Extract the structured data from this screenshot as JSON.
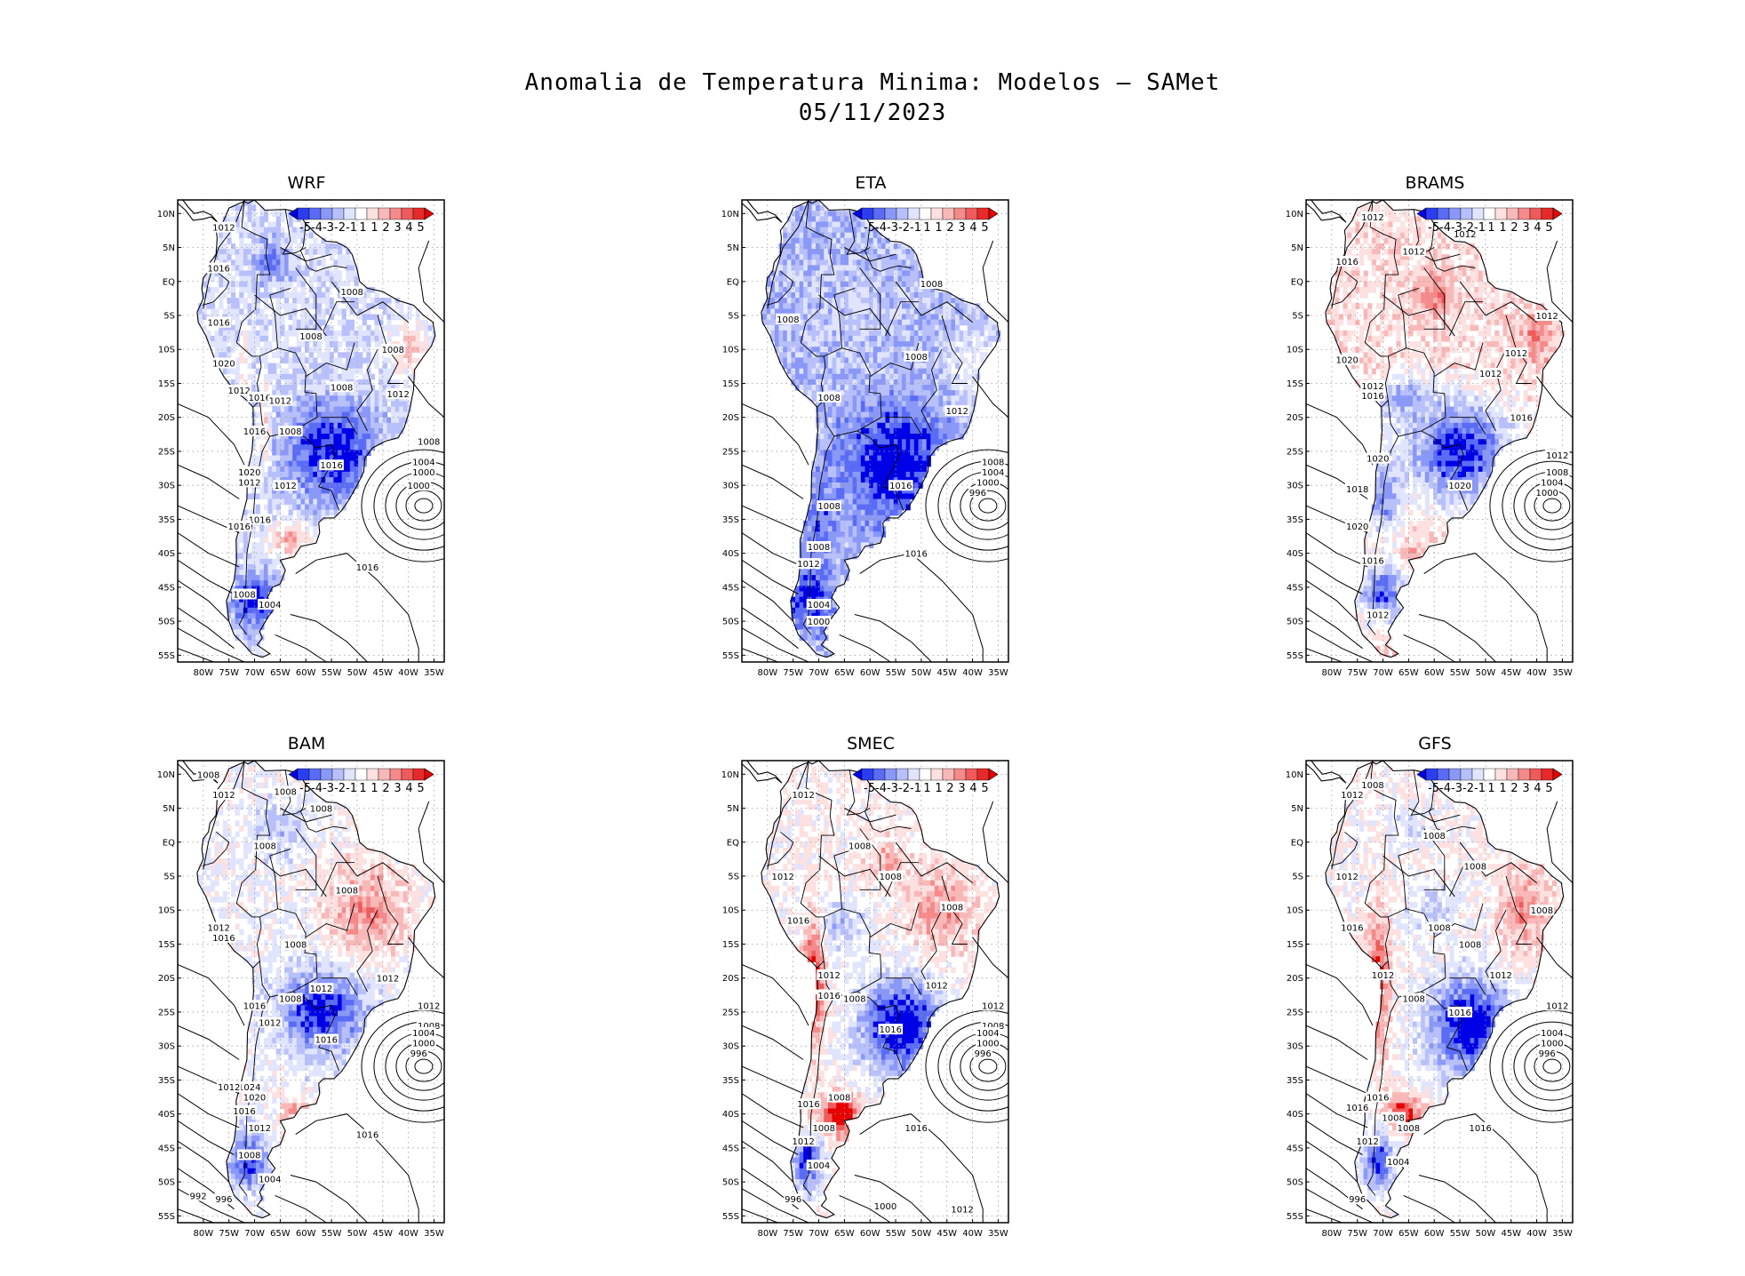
{
  "title_line1": "Anomalia de Temperatura Minima: Modelos — SAMet",
  "title_line2": "05/11/2023",
  "lat_labels": [
    "10N",
    "5N",
    "EQ",
    "5S",
    "10S",
    "15S",
    "20S",
    "25S",
    "30S",
    "35S",
    "40S",
    "45S",
    "50S",
    "55S"
  ],
  "lon_labels": [
    "80W",
    "75W",
    "70W",
    "65W",
    "60W",
    "55W",
    "50W",
    "45W",
    "40W",
    "35W"
  ],
  "colorbar": {
    "labels": [
      "-5",
      "-4",
      "-3",
      "-2",
      "-1",
      "1",
      "1",
      "2",
      "3",
      "4",
      "5"
    ],
    "colors": [
      "#0000e6",
      "#2a3ef0",
      "#5a6cf5",
      "#8a98f8",
      "#b8c0fb",
      "#e0e4fd",
      "#ffffff",
      "#fde0e0",
      "#f9b8b8",
      "#f58a8a",
      "#ef5a5a",
      "#e62a2a",
      "#e60000"
    ]
  },
  "panels": [
    {
      "name": "WRF",
      "pattern": "wrf",
      "contour_labels": [
        {
          "text": "1012",
          "lon": -76,
          "lat": 8
        },
        {
          "text": "1016",
          "lon": -77,
          "lat": 2
        },
        {
          "text": "1008",
          "lon": -51,
          "lat": -1.5
        },
        {
          "text": "1016",
          "lon": -77,
          "lat": -6
        },
        {
          "text": "1008",
          "lon": -59,
          "lat": -8
        },
        {
          "text": "1008",
          "lon": -43,
          "lat": -10
        },
        {
          "text": "1020",
          "lon": -76,
          "lat": -12
        },
        {
          "text": "1008",
          "lon": -53,
          "lat": -15.5
        },
        {
          "text": "1012",
          "lon": -42,
          "lat": -16.5
        },
        {
          "text": "1012",
          "lon": -73,
          "lat": -16
        },
        {
          "text": "1016",
          "lon": -69,
          "lat": -17
        },
        {
          "text": "1012",
          "lon": -65,
          "lat": -17.5
        },
        {
          "text": "1016",
          "lon": -70,
          "lat": -22
        },
        {
          "text": "1008",
          "lon": -63,
          "lat": -22
        },
        {
          "text": "1016",
          "lon": -55,
          "lat": -27
        },
        {
          "text": "1020",
          "lon": -71,
          "lat": -28
        },
        {
          "text": "1012",
          "lon": -71,
          "lat": -29.5
        },
        {
          "text": "1012",
          "lon": -64,
          "lat": -30
        },
        {
          "text": "1016",
          "lon": -69,
          "lat": -35
        },
        {
          "text": "1016",
          "lon": -73,
          "lat": -36
        },
        {
          "text": "1016",
          "lon": -48,
          "lat": -42
        },
        {
          "text": "1008",
          "lon": -72,
          "lat": -46
        },
        {
          "text": "1004",
          "lon": -67,
          "lat": -47.5
        },
        {
          "text": "1008",
          "lon": -36,
          "lat": -23.5
        },
        {
          "text": "1004",
          "lon": -37,
          "lat": -26.5
        },
        {
          "text": "1000",
          "lon": -37,
          "lat": -28
        },
        {
          "text": "1000",
          "lon": -38,
          "lat": -30
        }
      ]
    },
    {
      "name": "ETA",
      "pattern": "eta",
      "contour_labels": [
        {
          "text": "1008",
          "lon": -48,
          "lat": -0.3
        },
        {
          "text": "1008",
          "lon": -76,
          "lat": -5.5
        },
        {
          "text": "1008",
          "lon": -51,
          "lat": -11
        },
        {
          "text": "1008",
          "lon": -68,
          "lat": -17
        },
        {
          "text": "1012",
          "lon": -43,
          "lat": -19
        },
        {
          "text": "1016",
          "lon": -54,
          "lat": -30
        },
        {
          "text": "1008",
          "lon": -68,
          "lat": -33
        },
        {
          "text": "1008",
          "lon": -70,
          "lat": -39
        },
        {
          "text": "1012",
          "lon": -72,
          "lat": -41.5
        },
        {
          "text": "1004",
          "lon": -70,
          "lat": -47.5
        },
        {
          "text": "1000",
          "lon": -70,
          "lat": -50
        },
        {
          "text": "1016",
          "lon": -51,
          "lat": -40
        },
        {
          "text": "1008",
          "lon": -36,
          "lat": -26.5
        },
        {
          "text": "1004",
          "lon": -36,
          "lat": -28
        },
        {
          "text": "1000",
          "lon": -37,
          "lat": -29.5
        },
        {
          "text": "996",
          "lon": -39,
          "lat": -31
        }
      ]
    },
    {
      "name": "BRAMS",
      "pattern": "brams",
      "contour_labels": [
        {
          "text": "1012",
          "lon": -72,
          "lat": 9.5
        },
        {
          "text": "1012",
          "lon": -54,
          "lat": 7
        },
        {
          "text": "1012",
          "lon": -64,
          "lat": 4.5
        },
        {
          "text": "1016",
          "lon": -77,
          "lat": 3
        },
        {
          "text": "1012",
          "lon": -38,
          "lat": -5
        },
        {
          "text": "1012",
          "lon": -44,
          "lat": -10.5
        },
        {
          "text": "1020",
          "lon": -77,
          "lat": -11.5
        },
        {
          "text": "1012",
          "lon": -49,
          "lat": -13.5
        },
        {
          "text": "1012",
          "lon": -72,
          "lat": -15.3
        },
        {
          "text": "1016",
          "lon": -72,
          "lat": -16.8
        },
        {
          "text": "1016",
          "lon": -43,
          "lat": -20
        },
        {
          "text": "1020",
          "lon": -71,
          "lat": -26
        },
        {
          "text": "1018",
          "lon": -75,
          "lat": -30.5
        },
        {
          "text": "1020",
          "lon": -55,
          "lat": -30
        },
        {
          "text": "1020",
          "lon": -75,
          "lat": -36
        },
        {
          "text": "1016",
          "lon": -72,
          "lat": -41
        },
        {
          "text": "1012",
          "lon": -71,
          "lat": -49
        },
        {
          "text": "1012",
          "lon": -36,
          "lat": -25.5
        },
        {
          "text": "1008",
          "lon": -36,
          "lat": -28
        },
        {
          "text": "1004",
          "lon": -37,
          "lat": -29.5
        },
        {
          "text": "1000",
          "lon": -38,
          "lat": -31
        }
      ]
    },
    {
      "name": "BAM",
      "pattern": "bam",
      "contour_labels": [
        {
          "text": "1008",
          "lon": -79,
          "lat": 10
        },
        {
          "text": "1012",
          "lon": -76,
          "lat": 7
        },
        {
          "text": "1008",
          "lon": -64,
          "lat": 7.5
        },
        {
          "text": "1008",
          "lon": -57,
          "lat": 5
        },
        {
          "text": "1008",
          "lon": -68,
          "lat": -0.5
        },
        {
          "text": "1008",
          "lon": -52,
          "lat": -7
        },
        {
          "text": "1012",
          "lon": -77,
          "lat": -12.5
        },
        {
          "text": "1016",
          "lon": -76,
          "lat": -14
        },
        {
          "text": "1008",
          "lon": -62,
          "lat": -15
        },
        {
          "text": "1012",
          "lon": -57,
          "lat": -21.5
        },
        {
          "text": "1012",
          "lon": -44,
          "lat": -20
        },
        {
          "text": "1008",
          "lon": -63,
          "lat": -23
        },
        {
          "text": "1016",
          "lon": -70,
          "lat": -24
        },
        {
          "text": "1012",
          "lon": -67,
          "lat": -26.5
        },
        {
          "text": "1016",
          "lon": -56,
          "lat": -29
        },
        {
          "text": "1024",
          "lon": -71,
          "lat": -36
        },
        {
          "text": "1020",
          "lon": -70,
          "lat": -37.5
        },
        {
          "text": "1012",
          "lon": -75,
          "lat": -36
        },
        {
          "text": "1016",
          "lon": -72,
          "lat": -39.5
        },
        {
          "text": "1012",
          "lon": -69,
          "lat": -42
        },
        {
          "text": "1016",
          "lon": -48,
          "lat": -43
        },
        {
          "text": "1008",
          "lon": -71,
          "lat": -46
        },
        {
          "text": "1004",
          "lon": -67,
          "lat": -49.5
        },
        {
          "text": "992",
          "lon": -81,
          "lat": -52
        },
        {
          "text": "996",
          "lon": -76,
          "lat": -52.5
        },
        {
          "text": "1012",
          "lon": -36,
          "lat": -24
        },
        {
          "text": "1008",
          "lon": -36,
          "lat": -27
        },
        {
          "text": "1004",
          "lon": -37,
          "lat": -28
        },
        {
          "text": "1000",
          "lon": -37,
          "lat": -29.5
        },
        {
          "text": "996",
          "lon": -38,
          "lat": -31
        }
      ]
    },
    {
      "name": "SMEC",
      "pattern": "smec",
      "contour_labels": [
        {
          "text": "1012",
          "lon": -73,
          "lat": 7
        },
        {
          "text": "1008",
          "lon": -62,
          "lat": -0.5
        },
        {
          "text": "1008",
          "lon": -56,
          "lat": -5
        },
        {
          "text": "1012",
          "lon": -77,
          "lat": -5
        },
        {
          "text": "1016",
          "lon": -74,
          "lat": -11.5
        },
        {
          "text": "1008",
          "lon": -44,
          "lat": -9.5
        },
        {
          "text": "1012",
          "lon": -68,
          "lat": -19.5
        },
        {
          "text": "1016",
          "lon": -68,
          "lat": -22.5
        },
        {
          "text": "1008",
          "lon": -63,
          "lat": -23
        },
        {
          "text": "1012",
          "lon": -47,
          "lat": -21
        },
        {
          "text": "1016",
          "lon": -56,
          "lat": -27.5
        },
        {
          "text": "1008",
          "lon": -66,
          "lat": -37.5
        },
        {
          "text": "1016",
          "lon": -72,
          "lat": -38.5
        },
        {
          "text": "1008",
          "lon": -69,
          "lat": -42
        },
        {
          "text": "1012",
          "lon": -73,
          "lat": -44
        },
        {
          "text": "1004",
          "lon": -70,
          "lat": -47.5
        },
        {
          "text": "1016",
          "lon": -51,
          "lat": -42
        },
        {
          "text": "996",
          "lon": -75,
          "lat": -52.5
        },
        {
          "text": "1000",
          "lon": -57,
          "lat": -53.5
        },
        {
          "text": "1012",
          "lon": -42,
          "lat": -54
        },
        {
          "text": "1012",
          "lon": -36,
          "lat": -24
        },
        {
          "text": "1008",
          "lon": -36,
          "lat": -27
        },
        {
          "text": "1004",
          "lon": -37,
          "lat": -28
        },
        {
          "text": "1000",
          "lon": -37,
          "lat": -29.5
        },
        {
          "text": "996",
          "lon": -38,
          "lat": -31
        }
      ]
    },
    {
      "name": "GFS",
      "pattern": "gfs",
      "contour_labels": [
        {
          "text": "1012",
          "lon": -76,
          "lat": 7
        },
        {
          "text": "1008",
          "lon": -72,
          "lat": 8.5
        },
        {
          "text": "1008",
          "lon": -60,
          "lat": 1
        },
        {
          "text": "1008",
          "lon": -52,
          "lat": -3.5
        },
        {
          "text": "1012",
          "lon": -77,
          "lat": -5
        },
        {
          "text": "1016",
          "lon": -76,
          "lat": -12.5
        },
        {
          "text": "1008",
          "lon": -59,
          "lat": -12.5
        },
        {
          "text": "1008",
          "lon": -39,
          "lat": -10
        },
        {
          "text": "1008",
          "lon": -53,
          "lat": -15
        },
        {
          "text": "1012",
          "lon": -70,
          "lat": -19.5
        },
        {
          "text": "1012",
          "lon": -47,
          "lat": -19.5
        },
        {
          "text": "1008",
          "lon": -64,
          "lat": -23
        },
        {
          "text": "1016",
          "lon": -55,
          "lat": -25
        },
        {
          "text": "1016",
          "lon": -71,
          "lat": -37.5
        },
        {
          "text": "1016",
          "lon": -75,
          "lat": -39
        },
        {
          "text": "1008",
          "lon": -68,
          "lat": -40.5
        },
        {
          "text": "1008",
          "lon": -65,
          "lat": -42
        },
        {
          "text": "1016",
          "lon": -51,
          "lat": -42
        },
        {
          "text": "1012",
          "lon": -73,
          "lat": -44
        },
        {
          "text": "1004",
          "lon": -67,
          "lat": -47
        },
        {
          "text": "996",
          "lon": -75,
          "lat": -52.5
        },
        {
          "text": "1012",
          "lon": -36,
          "lat": -24
        },
        {
          "text": "1004",
          "lon": -37,
          "lat": -28
        },
        {
          "text": "1000",
          "lon": -37,
          "lat": -29.5
        },
        {
          "text": "996",
          "lon": -38,
          "lat": -31
        }
      ]
    }
  ]
}
